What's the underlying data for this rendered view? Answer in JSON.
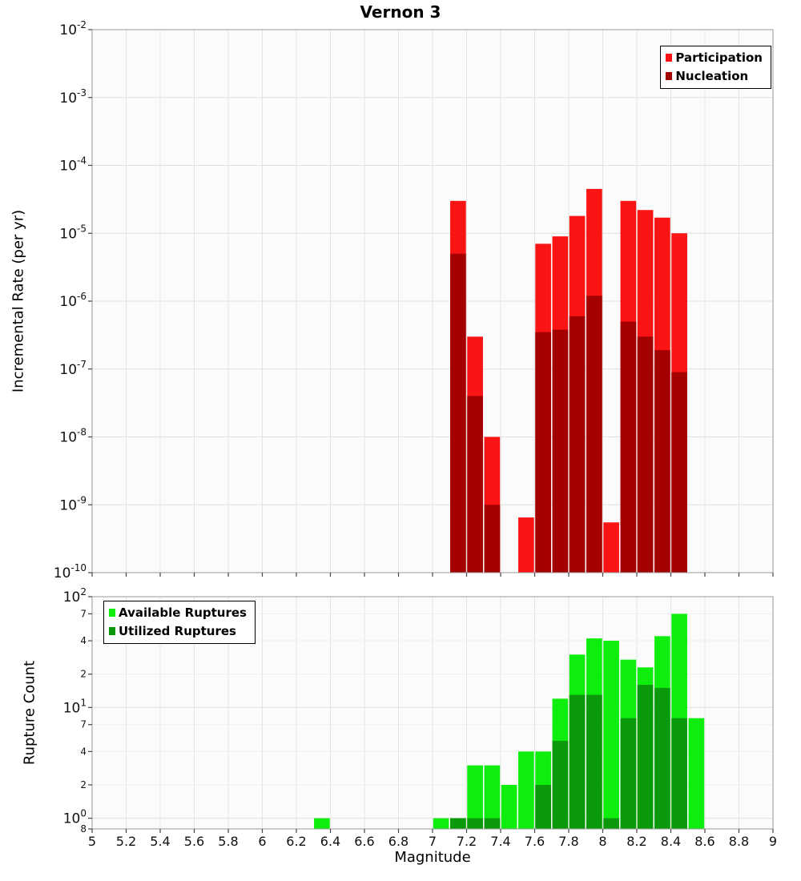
{
  "page_title": "Vernon 3",
  "chart_data": [
    {
      "type": "bar",
      "name": "incremental-rate-chart",
      "title": "Vernon 3",
      "xlabel": "",
      "ylabel": "Incremental Rate (per yr)",
      "yscale": "log",
      "ymin": 1e-10,
      "ymax": 0.01,
      "xmin": 5,
      "xmax": 9,
      "xstep": 0.2,
      "grid": true,
      "legend_position": "top-right",
      "legend": [
        {
          "label": "Participation",
          "color": "#fb1414"
        },
        {
          "label": "Nucleation",
          "color": "#a40000"
        }
      ],
      "y_ticks": [
        {
          "value": 0.01,
          "exp": "-2"
        },
        {
          "value": 0.001,
          "exp": "-3"
        },
        {
          "value": 0.0001,
          "exp": "-4"
        },
        {
          "value": 1e-05,
          "exp": "-5"
        },
        {
          "value": 1e-06,
          "exp": "-6"
        },
        {
          "value": 1e-07,
          "exp": "-7"
        },
        {
          "value": 1e-08,
          "exp": "-8"
        },
        {
          "value": 1e-09,
          "exp": "-9"
        },
        {
          "value": 1e-10,
          "exp": "-10"
        }
      ],
      "series": [
        {
          "name": "Participation",
          "color": "#fb1414",
          "bars": [
            {
              "x0": 7.1,
              "x1": 7.2,
              "y": 3e-05
            },
            {
              "x0": 7.2,
              "x1": 7.3,
              "y": 3e-07
            },
            {
              "x0": 7.3,
              "x1": 7.4,
              "y": 1e-08
            },
            {
              "x0": 7.5,
              "x1": 7.6,
              "y": 6.5e-10
            },
            {
              "x0": 7.6,
              "x1": 7.7,
              "y": 7e-06
            },
            {
              "x0": 7.7,
              "x1": 7.8,
              "y": 9e-06
            },
            {
              "x0": 7.8,
              "x1": 7.9,
              "y": 1.8e-05
            },
            {
              "x0": 7.9,
              "x1": 8.0,
              "y": 4.5e-05
            },
            {
              "x0": 8.0,
              "x1": 8.1,
              "y": 5.5e-10
            },
            {
              "x0": 8.1,
              "x1": 8.2,
              "y": 3e-05
            },
            {
              "x0": 8.2,
              "x1": 8.3,
              "y": 2.2e-05
            },
            {
              "x0": 8.3,
              "x1": 8.4,
              "y": 1.7e-05
            },
            {
              "x0": 8.4,
              "x1": 8.5,
              "y": 1e-05
            }
          ]
        },
        {
          "name": "Nucleation",
          "color": "#a40000",
          "bars": [
            {
              "x0": 7.1,
              "x1": 7.2,
              "y": 5e-06
            },
            {
              "x0": 7.2,
              "x1": 7.3,
              "y": 4e-08
            },
            {
              "x0": 7.3,
              "x1": 7.4,
              "y": 1e-09
            },
            {
              "x0": 7.6,
              "x1": 7.7,
              "y": 3.5e-07
            },
            {
              "x0": 7.7,
              "x1": 7.8,
              "y": 3.8e-07
            },
            {
              "x0": 7.8,
              "x1": 7.9,
              "y": 6e-07
            },
            {
              "x0": 7.9,
              "x1": 8.0,
              "y": 1.2e-06
            },
            {
              "x0": 8.1,
              "x1": 8.2,
              "y": 5e-07
            },
            {
              "x0": 8.2,
              "x1": 8.3,
              "y": 3e-07
            },
            {
              "x0": 8.3,
              "x1": 8.4,
              "y": 1.9e-07
            },
            {
              "x0": 8.4,
              "x1": 8.5,
              "y": 9e-08
            }
          ]
        }
      ]
    },
    {
      "type": "bar",
      "name": "rupture-count-chart",
      "title": "",
      "xlabel": "Magnitude",
      "ylabel": "Rupture Count",
      "yscale": "log",
      "ymin": 0.8,
      "ymax": 100,
      "xmin": 5,
      "xmax": 9,
      "xstep": 0.2,
      "grid": true,
      "legend_position": "top-left",
      "legend": [
        {
          "label": "Available Ruptures",
          "color": "#0dee0d"
        },
        {
          "label": "Utilized Ruptures",
          "color": "#0a990a"
        }
      ],
      "y_ticks": [
        {
          "value": 100,
          "exp": "2"
        },
        {
          "value": 70,
          "label": "7"
        },
        {
          "value": 40,
          "label": "4"
        },
        {
          "value": 20,
          "label": "2"
        },
        {
          "value": 10,
          "exp": "1"
        },
        {
          "value": 7,
          "label": "7"
        },
        {
          "value": 4,
          "label": "4"
        },
        {
          "value": 2,
          "label": "2"
        },
        {
          "value": 1,
          "exp": "0"
        },
        {
          "value": 0.8,
          "label": "8"
        }
      ],
      "x_ticks": [
        {
          "value": 5,
          "label": "5"
        },
        {
          "value": 5.2,
          "label": "5.2"
        },
        {
          "value": 5.4,
          "label": "5.4"
        },
        {
          "value": 5.6,
          "label": "5.6"
        },
        {
          "value": 5.8,
          "label": "5.8"
        },
        {
          "value": 6,
          "label": "6"
        },
        {
          "value": 6.2,
          "label": "6.2"
        },
        {
          "value": 6.4,
          "label": "6.4"
        },
        {
          "value": 6.6,
          "label": "6.6"
        },
        {
          "value": 6.8,
          "label": "6.8"
        },
        {
          "value": 7,
          "label": "7"
        },
        {
          "value": 7.2,
          "label": "7.2"
        },
        {
          "value": 7.4,
          "label": "7.4"
        },
        {
          "value": 7.6,
          "label": "7.6"
        },
        {
          "value": 7.8,
          "label": "7.8"
        },
        {
          "value": 8,
          "label": "8"
        },
        {
          "value": 8.2,
          "label": "8.2"
        },
        {
          "value": 8.4,
          "label": "8.4"
        },
        {
          "value": 8.6,
          "label": "8.6"
        },
        {
          "value": 8.8,
          "label": "8.8"
        },
        {
          "value": 9,
          "label": "9"
        }
      ],
      "series": [
        {
          "name": "Available Ruptures",
          "color": "#0dee0d",
          "bars": [
            {
              "x0": 6.3,
              "x1": 6.4,
              "y": 1
            },
            {
              "x0": 7.0,
              "x1": 7.1,
              "y": 1
            },
            {
              "x0": 7.1,
              "x1": 7.2,
              "y": 1
            },
            {
              "x0": 7.2,
              "x1": 7.3,
              "y": 3
            },
            {
              "x0": 7.3,
              "x1": 7.4,
              "y": 3
            },
            {
              "x0": 7.4,
              "x1": 7.5,
              "y": 2
            },
            {
              "x0": 7.5,
              "x1": 7.6,
              "y": 4
            },
            {
              "x0": 7.6,
              "x1": 7.7,
              "y": 4
            },
            {
              "x0": 7.7,
              "x1": 7.8,
              "y": 12
            },
            {
              "x0": 7.8,
              "x1": 7.9,
              "y": 30
            },
            {
              "x0": 7.9,
              "x1": 8.0,
              "y": 42
            },
            {
              "x0": 8.0,
              "x1": 8.1,
              "y": 40
            },
            {
              "x0": 8.1,
              "x1": 8.2,
              "y": 27
            },
            {
              "x0": 8.2,
              "x1": 8.3,
              "y": 23
            },
            {
              "x0": 8.3,
              "x1": 8.4,
              "y": 44
            },
            {
              "x0": 8.4,
              "x1": 8.5,
              "y": 70
            },
            {
              "x0": 8.5,
              "x1": 8.6,
              "y": 8
            }
          ]
        },
        {
          "name": "Utilized Ruptures",
          "color": "#0a990a",
          "bars": [
            {
              "x0": 7.1,
              "x1": 7.2,
              "y": 1
            },
            {
              "x0": 7.2,
              "x1": 7.3,
              "y": 1
            },
            {
              "x0": 7.3,
              "x1": 7.4,
              "y": 1
            },
            {
              "x0": 7.6,
              "x1": 7.7,
              "y": 2
            },
            {
              "x0": 7.7,
              "x1": 7.8,
              "y": 5
            },
            {
              "x0": 7.8,
              "x1": 7.9,
              "y": 13
            },
            {
              "x0": 7.9,
              "x1": 8.0,
              "y": 13
            },
            {
              "x0": 8.0,
              "x1": 8.1,
              "y": 1
            },
            {
              "x0": 8.1,
              "x1": 8.2,
              "y": 8
            },
            {
              "x0": 8.2,
              "x1": 8.3,
              "y": 16
            },
            {
              "x0": 8.3,
              "x1": 8.4,
              "y": 15
            },
            {
              "x0": 8.4,
              "x1": 8.5,
              "y": 8
            }
          ]
        }
      ]
    }
  ]
}
